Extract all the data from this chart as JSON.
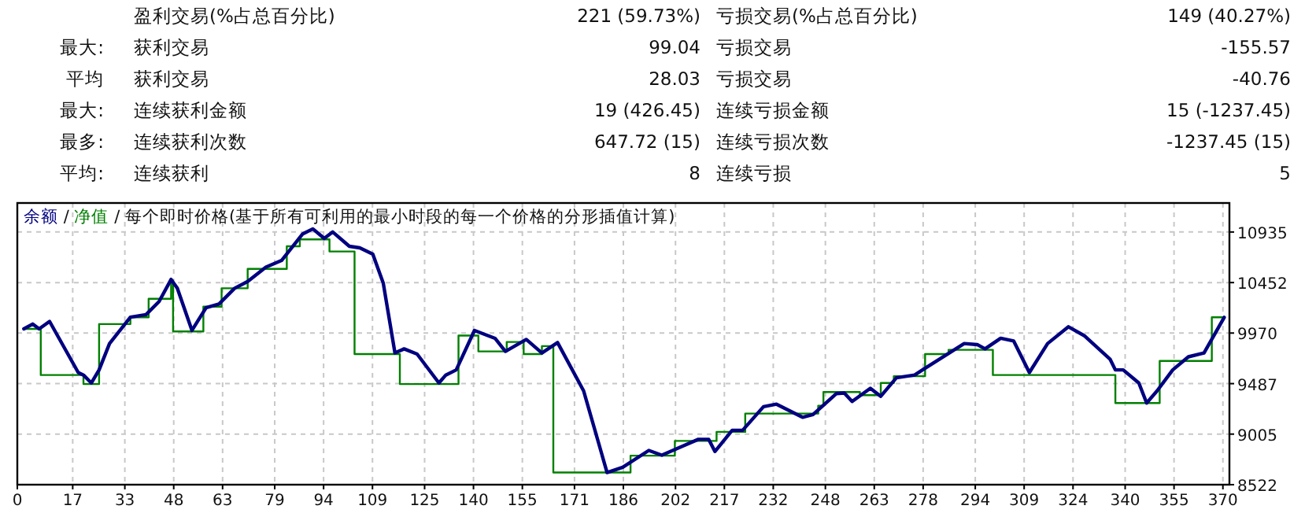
{
  "chart_data": [
    {
      "type": "other",
      "annotations": [
        "盈利交易(%占总百分比)",
        "221 (59.73%)",
        "亏损交易(%占总百分比)",
        "149 (40.27%)",
        "最大:",
        "获利交易",
        "99.04",
        "亏损交易",
        "-155.57",
        "平均",
        "获利交易",
        "28.03",
        "亏损交易",
        "-40.76",
        "最大:",
        "连续获利金额",
        "19 (426.45)",
        "连续亏损金额",
        "15 (-1237.45)",
        "最多:",
        "连续获利次数",
        "647.72 (15)",
        "连续亏损次数",
        "-1237.45 (15)",
        "平均:",
        "连续获利",
        "8",
        "连续亏损",
        "5"
      ]
    },
    {
      "type": "line",
      "title": "每个即时价格(基于所有可利用的最小时段的每一个价格的分形插值计算)",
      "legend": "top left",
      "annotations": [
        "/",
        "/"
      ],
      "grid": true,
      "line_style": "solid",
      "marker": "none",
      "xlim": [
        0,
        372
      ],
      "xticks": [
        0,
        17,
        33,
        48,
        63,
        79,
        94,
        109,
        125,
        140,
        155,
        171,
        186,
        202,
        217,
        232,
        248,
        263,
        278,
        294,
        309,
        324,
        340,
        355,
        370
      ],
      "ylim": [
        8522,
        11212
      ],
      "yticks": [
        8522,
        9005,
        9487,
        9970,
        10452,
        10935
      ],
      "series": [
        {
          "name": "余额",
          "type": "line",
          "color": "#000080",
          "x": [
            2,
            4.7,
            6.7,
            9.9,
            18.7,
            20.3,
            22.7,
            25.1,
            28.3,
            34.7,
            39.5,
            43.5,
            47.2,
            49.1,
            53.6,
            57.9,
            61.9,
            66.7,
            70.7,
            76.3,
            81.1,
            87.5,
            90.7,
            94.2,
            96.8,
            101.9,
            105.1,
            109.1,
            112.3,
            115.9,
            118.7,
            122.7,
            129.4,
            131.5,
            134.7,
            140.3,
            146.6,
            149.8,
            156.2,
            161,
            165.8,
            173.8,
            181,
            185.8,
            193.8,
            197.8,
            204.2,
            209,
            212.2,
            214.1,
            219.4,
            222.6,
            229,
            233,
            241,
            244.2,
            251.4,
            253.8,
            256.2,
            261.8,
            265,
            269.8,
            275.4,
            277.8,
            290.6,
            294.6,
            297,
            301.8,
            305.8,
            310.6,
            316.2,
            322.6,
            327.4,
            335.4,
            337,
            339.4,
            344.2,
            346.6,
            349.8,
            354.6,
            359.4,
            364.2,
            370.4
          ],
          "values": [
            10010,
            10056,
            10010,
            10081,
            9593,
            9569,
            9493,
            9618,
            9870,
            10121,
            10146,
            10271,
            10482,
            10398,
            9995,
            10211,
            10247,
            10398,
            10463,
            10599,
            10663,
            10915,
            10965,
            10874,
            10935,
            10799,
            10784,
            10724,
            10448,
            9780,
            9819,
            9769,
            9493,
            9569,
            9618,
            9995,
            9920,
            9795,
            9909,
            9780,
            9879,
            9418,
            8638,
            8688,
            8849,
            8804,
            8890,
            8955,
            8955,
            8839,
            9041,
            9041,
            9267,
            9291,
            9166,
            9192,
            9392,
            9397,
            9317,
            9442,
            9366,
            9543,
            9569,
            9618,
            9870,
            9860,
            9819,
            9920,
            9894,
            9593,
            9870,
            10030,
            9946,
            9719,
            9618,
            9618,
            9493,
            9302,
            9418,
            9618,
            9743,
            9780,
            10120
          ]
        },
        {
          "name": "净值",
          "type": "step",
          "color": "#008000",
          "x": [
            2,
            7.2,
            20.3,
            25.1,
            34.7,
            40.3,
            47.2,
            47.8,
            57.1,
            62.7,
            70.7,
            82.7,
            86.7,
            95.8,
            103.5,
            117.4,
            135.4,
            141.5,
            150.2,
            155.4,
            161,
            164.5,
            188.2,
            201.8,
            214.6,
            223.4,
            245.8,
            247.4,
            258.6,
            265,
            269,
            278.6,
            285.8,
            299.4,
            337,
            350.6,
            366.6,
            370.4
          ],
          "values": [
            10010,
            9569,
            9483,
            10056,
            10121,
            10297,
            10473,
            9985,
            10222,
            10398,
            10583,
            10799,
            10865,
            10749,
            9769,
            9483,
            9946,
            9795,
            9885,
            9769,
            9845,
            8638,
            8799,
            8940,
            9026,
            9201,
            9276,
            9407,
            9377,
            9493,
            9558,
            9769,
            9810,
            9569,
            9302,
            9704,
            10120,
            10120
          ]
        }
      ]
    }
  ]
}
